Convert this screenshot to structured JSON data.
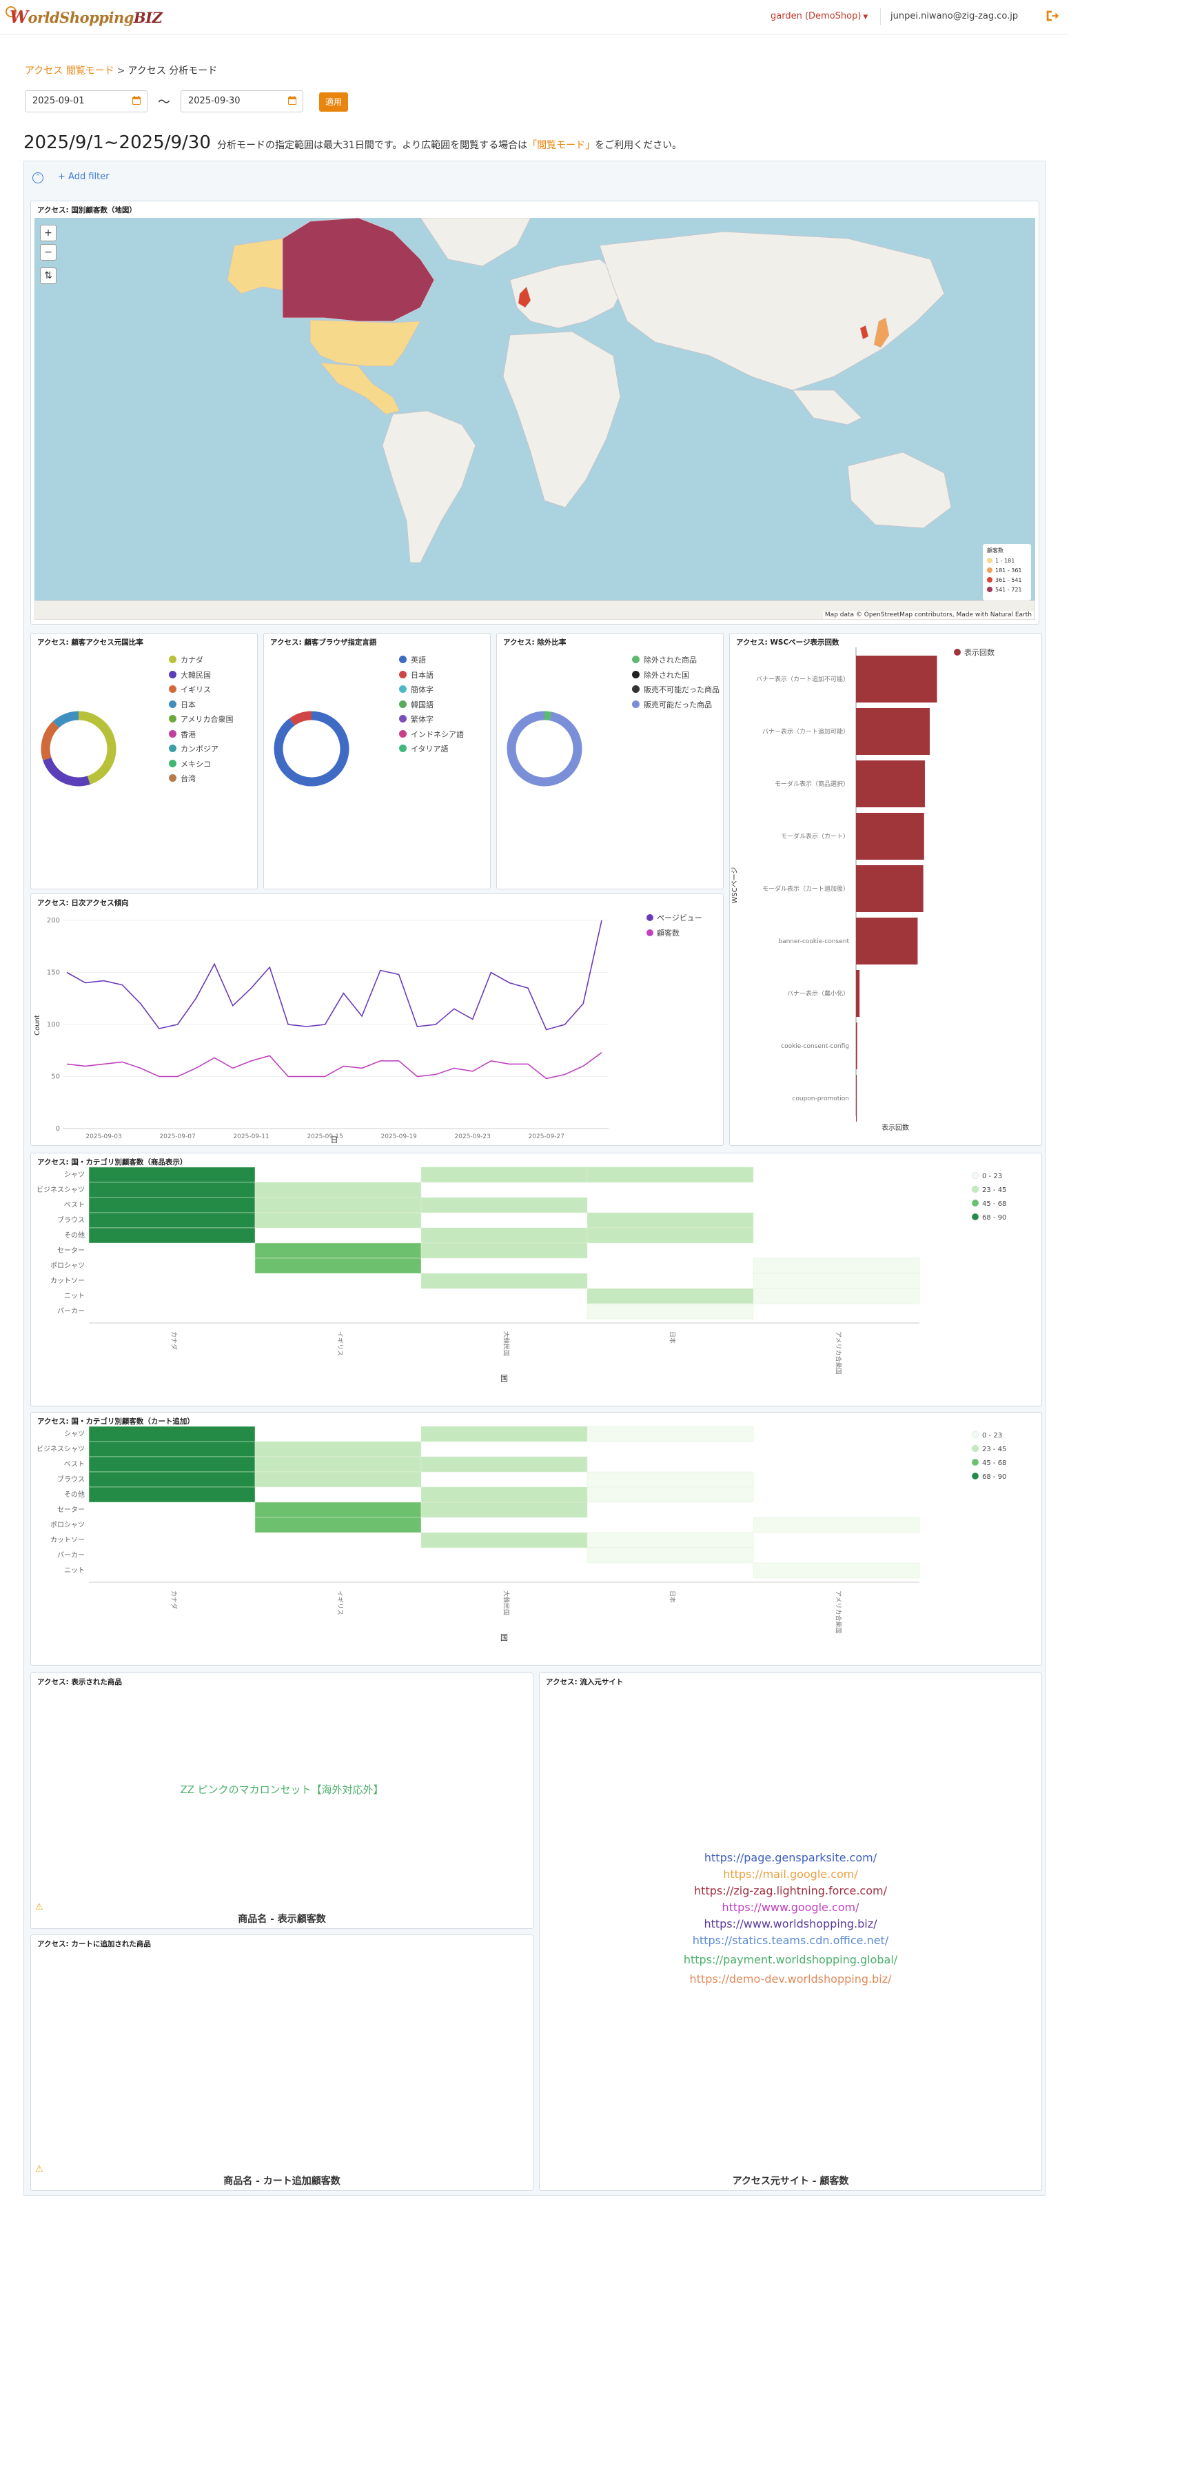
{
  "header": {
    "logo_w": "W",
    "logo_rest": "orldShopping",
    "logo_biz": "BIZ",
    "tenant": "garden (DemoShop)",
    "email": "junpei.niwano@zig-zag.co.jp"
  },
  "breadcrumb": {
    "link": "アクセス 閲覧モード",
    "separator": ">",
    "current": "アクセス 分析モード"
  },
  "dates": {
    "start": "2025-09-01",
    "end": "2025-09-30",
    "tilde": "〜",
    "apply_label": "適用"
  },
  "period": {
    "title": "2025/9/1~2025/9/30",
    "note_pre": "分析モードの指定範囲は最大31日間です。より広範囲を閲覧する場合は",
    "note_link": "「閲覧モード」",
    "note_post": "をご利用ください。"
  },
  "filter": {
    "add_label": "+ Add filter"
  },
  "map_panel": {
    "title": "アクセス: 国別顧客数（地図）",
    "legend_title": "顧客数",
    "legend": [
      {
        "label": "1 - 181",
        "color": "#f6d98a"
      },
      {
        "label": "181 - 361",
        "color": "#f0a25a"
      },
      {
        "label": "361 - 541",
        "color": "#d9462f"
      },
      {
        "label": "541 - 721",
        "color": "#a33a57"
      }
    ],
    "attribution": "Map data © OpenStreetMap contributors, Made with Natural Earth"
  },
  "panels": {
    "country_ratio": {
      "title": "アクセス: 顧客アクセス元国比率",
      "legend": [
        {
          "label": "カナダ",
          "color": "#b8c13a"
        },
        {
          "label": "大韓民国",
          "color": "#5b3fb8"
        },
        {
          "label": "イギリス",
          "color": "#d06a3b"
        },
        {
          "label": "日本",
          "color": "#3f8fbf"
        },
        {
          "label": "アメリカ合衆国",
          "color": "#6aaa3a"
        },
        {
          "label": "香港",
          "color": "#c03fa0"
        },
        {
          "label": "カンボジア",
          "color": "#3aa0a6"
        },
        {
          "label": "メキシコ",
          "color": "#3fb86f"
        },
        {
          "label": "台湾",
          "color": "#b87a4a"
        }
      ],
      "slices": [
        {
          "label": "カナダ",
          "value": 45,
          "color": "#b8c13a"
        },
        {
          "label": "大韓民国",
          "value": 25,
          "color": "#5b3fb8"
        },
        {
          "label": "イギリス",
          "value": 18,
          "color": "#d06a3b"
        },
        {
          "label": "日本",
          "value": 12,
          "color": "#3f8fbf"
        }
      ]
    },
    "browser_lang": {
      "title": "アクセス: 顧客ブラウザ指定言語",
      "legend": [
        {
          "label": "英語",
          "color": "#3f6bc4"
        },
        {
          "label": "日本語",
          "color": "#d04545"
        },
        {
          "label": "簡体字",
          "color": "#4fb8c8"
        },
        {
          "label": "韓国語",
          "color": "#5aa85a"
        },
        {
          "label": "繁体字",
          "color": "#7a4fb8"
        },
        {
          "label": "インドネシア語",
          "color": "#c83f8a"
        },
        {
          "label": "イタリア語",
          "color": "#3fb87a"
        }
      ],
      "slices": [
        {
          "label": "英語",
          "value": 90,
          "color": "#3f6bc4"
        },
        {
          "label": "日本語",
          "value": 10,
          "color": "#d04545"
        }
      ]
    },
    "exclusion": {
      "title": "アクセス: 除外比率",
      "legend": [
        {
          "label": "除外された商品",
          "color": "#5cbb6e"
        },
        {
          "label": "除外された国",
          "color": "#222222"
        },
        {
          "label": "販売不可能だった商品",
          "color": "#333333"
        },
        {
          "label": "販売可能だった商品",
          "color": "#7a8fd8"
        }
      ],
      "slices": [
        {
          "label": "除外された商品",
          "value": 3,
          "color": "#5cbb6e"
        },
        {
          "label": "販売可能だった商品",
          "value": 97,
          "color": "#7a8fd8"
        }
      ]
    },
    "wsc_page": {
      "title": "アクセス: WSCページ表示回数",
      "legend_label": "表示回数",
      "ylabel": "WSCページ",
      "xlabel": "表示回数",
      "bars": [
        {
          "label": "バナー表示（カート追加不可能）",
          "value": 100
        },
        {
          "label": "バナー表示（カート追加可能）",
          "value": 91
        },
        {
          "label": "モーダル表示（商品選択）",
          "value": 85
        },
        {
          "label": "モーダル表示（カート）",
          "value": 84
        },
        {
          "label": "モーダル表示（カート追加後）",
          "value": 83
        },
        {
          "label": "banner-cookie-consent",
          "value": 76
        },
        {
          "label": "バナー表示（農小化）",
          "value": 4
        },
        {
          "label": "cookie-consent-config",
          "value": 1
        },
        {
          "label": "coupon-promotion",
          "value": 0.5
        }
      ],
      "color": "#a0353a"
    },
    "daily_access": {
      "title": "アクセス: 日次アクセス傾向",
      "ylabel": "Count",
      "xlabel": "日",
      "legend": [
        {
          "label": "ページビュー",
          "color": "#6a3ab8"
        },
        {
          "label": "顧客数",
          "color": "#c040c0"
        }
      ]
    },
    "heat_view": {
      "title": "アクセス: 国・カテゴリ別顧客数（商品表示）",
      "xlabel": "国",
      "rows": [
        "シャツ",
        "ビジネスシャツ",
        "ベスト",
        "ブラウス",
        "その他",
        "セーター",
        "ポロシャツ",
        "カットソー",
        "ニット",
        "パーカー"
      ],
      "cols": [
        "カナダ",
        "イギリス",
        "大韓民国",
        "日本",
        "アメリカ合衆国"
      ],
      "legend": [
        {
          "label": "0 - 23",
          "color": "#f3faf0"
        },
        {
          "label": "23 - 45",
          "color": "#c6e8bf"
        },
        {
          "label": "45 - 68",
          "color": "#6cc06e"
        },
        {
          "label": "68 - 90",
          "color": "#238b45"
        }
      ]
    },
    "heat_cart": {
      "title": "アクセス: 国・カテゴリ別顧客数（カート追加）",
      "xlabel": "国",
      "rows": [
        "シャツ",
        "ビジネスシャツ",
        "ベスト",
        "ブラウス",
        "その他",
        "セーター",
        "ポロシャツ",
        "カットソー",
        "パーカー",
        "ニット"
      ],
      "cols": [
        "カナダ",
        "イギリス",
        "大韓民国",
        "日本",
        "アメリカ合衆国"
      ],
      "legend": [
        {
          "label": "0 - 23",
          "color": "#f3faf0"
        },
        {
          "label": "23 - 45",
          "color": "#c6e8bf"
        },
        {
          "label": "45 - 68",
          "color": "#6cc06e"
        },
        {
          "label": "68 - 90",
          "color": "#238b45"
        }
      ]
    },
    "viewed_products": {
      "title": "アクセス: 表示された商品",
      "item": "ZZ ピンクのマカロンセット【海外対応外】",
      "item_color": "#4caf6a",
      "footer": "商品名 - 表示顧客数"
    },
    "cart_products": {
      "title": "アクセス: カートに追加された商品",
      "footer": "商品名 - カート追加顧客数"
    },
    "referrers": {
      "title": "アクセス: 流入元サイト",
      "footer": "アクセス元サイト - 顧客数",
      "sites": [
        {
          "label": "https://page.gensparksite.com/",
          "color": "#3f5fc0"
        },
        {
          "label": "https://mail.google.com/",
          "color": "#e8a040"
        },
        {
          "label": "https://zig-zag.lightning.force.com/",
          "color": "#a03040"
        },
        {
          "label": "https://www.google.com/",
          "color": "#c040c0"
        },
        {
          "label": "https://www.worldshopping.biz/",
          "color": "#5a3a9a"
        },
        {
          "label": "https://statics.teams.cdn.office.net/",
          "color": "#5a8ad0"
        },
        {
          "label": "https://payment.worldshopping.global/",
          "color": "#4caf6a"
        },
        {
          "label": "https://demo-dev.worldshopping.biz/",
          "color": "#e08a5a"
        }
      ]
    }
  },
  "chart_data": [
    {
      "type": "line",
      "title": "アクセス: 日次アクセス傾向",
      "xlabel": "日",
      "ylabel": "Count",
      "ylim": [
        0,
        200
      ],
      "yticks": [
        0,
        50,
        100,
        150,
        200
      ],
      "xtick_labels": [
        "2025-09-03",
        "2025-09-07",
        "2025-09-11",
        "2025-09-15",
        "2025-09-19",
        "2025-09-23",
        "2025-09-27"
      ],
      "x": [
        "2025-09-01",
        "2025-09-02",
        "2025-09-03",
        "2025-09-04",
        "2025-09-05",
        "2025-09-06",
        "2025-09-07",
        "2025-09-08",
        "2025-09-09",
        "2025-09-10",
        "2025-09-11",
        "2025-09-12",
        "2025-09-13",
        "2025-09-14",
        "2025-09-15",
        "2025-09-16",
        "2025-09-17",
        "2025-09-18",
        "2025-09-19",
        "2025-09-20",
        "2025-09-21",
        "2025-09-22",
        "2025-09-23",
        "2025-09-24",
        "2025-09-25",
        "2025-09-26",
        "2025-09-27",
        "2025-09-28",
        "2025-09-29",
        "2025-09-30"
      ],
      "series": [
        {
          "name": "ページビュー",
          "color": "#6a3ab8",
          "values": [
            150,
            140,
            142,
            138,
            120,
            96,
            100,
            125,
            158,
            118,
            135,
            155,
            100,
            98,
            100,
            130,
            108,
            152,
            148,
            98,
            100,
            115,
            105,
            150,
            140,
            135,
            95,
            100,
            120,
            200
          ]
        },
        {
          "name": "顧客数",
          "color": "#c040c0",
          "values": [
            62,
            60,
            62,
            64,
            58,
            50,
            50,
            58,
            68,
            58,
            65,
            70,
            50,
            50,
            50,
            60,
            58,
            65,
            65,
            50,
            52,
            58,
            55,
            65,
            62,
            62,
            48,
            52,
            60,
            73
          ]
        }
      ]
    },
    {
      "type": "bar",
      "title": "アクセス: WSCページ表示回数",
      "orientation": "horizontal",
      "xlabel": "表示回数",
      "ylabel": "WSCページ",
      "categories": [
        "バナー表示（カート追加不可能）",
        "バナー表示（カート追加可能）",
        "モーダル表示（商品選択）",
        "モーダル表示（カート）",
        "モーダル表示（カート追加後）",
        "banner-cookie-consent",
        "バナー表示（農小化）",
        "cookie-consent-config",
        "coupon-promotion"
      ],
      "series": [
        {
          "name": "表示回数",
          "values": [
            100,
            91,
            85,
            84,
            83,
            76,
            4,
            1,
            0.5
          ]
        }
      ]
    },
    {
      "type": "heatmap",
      "title": "アクセス: 国・カテゴリ別顧客数（商品表示）",
      "xlabel": "国",
      "rows": [
        "シャツ",
        "ビジネスシャツ",
        "ベスト",
        "ブラウス",
        "その他",
        "セーター",
        "ポロシャツ",
        "カットソー",
        "ニット",
        "パーカー"
      ],
      "cols": [
        "カナダ",
        "イギリス",
        "大韓民国",
        "日本",
        "アメリカ合衆国"
      ],
      "values": [
        [
          80,
          0,
          30,
          30,
          0
        ],
        [
          80,
          30,
          0,
          0,
          0
        ],
        [
          80,
          30,
          30,
          0,
          0
        ],
        [
          80,
          30,
          0,
          30,
          0
        ],
        [
          80,
          0,
          30,
          30,
          0
        ],
        [
          0,
          55,
          30,
          0,
          0
        ],
        [
          0,
          55,
          0,
          0,
          10
        ],
        [
          0,
          0,
          30,
          0,
          10
        ],
        [
          0,
          0,
          0,
          30,
          10
        ],
        [
          0,
          0,
          0,
          10,
          0
        ]
      ]
    },
    {
      "type": "heatmap",
      "title": "アクセス: 国・カテゴリ別顧客数（カート追加）",
      "xlabel": "国",
      "rows": [
        "シャツ",
        "ビジネスシャツ",
        "ベスト",
        "ブラウス",
        "その他",
        "セーター",
        "ポロシャツ",
        "カットソー",
        "パーカー",
        "ニット"
      ],
      "cols": [
        "カナダ",
        "イギリス",
        "大韓民国",
        "日本",
        "アメリカ合衆国"
      ],
      "values": [
        [
          80,
          0,
          30,
          10,
          0
        ],
        [
          80,
          30,
          0,
          0,
          0
        ],
        [
          80,
          30,
          30,
          0,
          0
        ],
        [
          80,
          30,
          0,
          10,
          0
        ],
        [
          80,
          0,
          30,
          10,
          0
        ],
        [
          0,
          55,
          30,
          0,
          0
        ],
        [
          0,
          55,
          0,
          0,
          10
        ],
        [
          0,
          0,
          30,
          10,
          0
        ],
        [
          0,
          0,
          0,
          10,
          0
        ],
        [
          0,
          0,
          0,
          0,
          10
        ]
      ]
    },
    {
      "type": "pie",
      "title": "アクセス: 顧客アクセス元国比率",
      "categories": [
        "カナダ",
        "大韓民国",
        "イギリス",
        "日本"
      ],
      "values": [
        45,
        25,
        18,
        12
      ]
    },
    {
      "type": "pie",
      "title": "アクセス: 顧客ブラウザ指定言語",
      "categories": [
        "英語",
        "日本語"
      ],
      "values": [
        90,
        10
      ]
    },
    {
      "type": "pie",
      "title": "アクセス: 除外比率",
      "categories": [
        "除外された商品",
        "販売可能だった商品"
      ],
      "values": [
        3,
        97
      ]
    }
  ]
}
